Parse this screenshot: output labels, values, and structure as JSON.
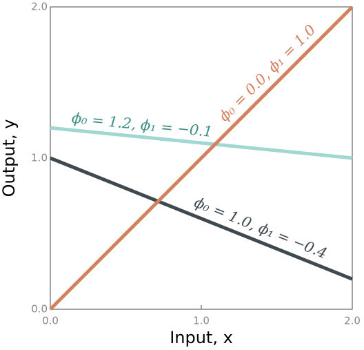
{
  "chart_data": {
    "type": "line",
    "x_label": "Input, x",
    "y_label": "Output, y",
    "x": [
      0,
      2
    ],
    "series": [
      {
        "name": "ϕ₀ = 1.2, ϕ₁ = −0.1",
        "color": "#9fd8d0",
        "values": [
          1.2,
          1.0
        ]
      },
      {
        "name": "ϕ₀ = 1.0, ϕ₁ = −0.4",
        "color": "#3e4a50",
        "values": [
          1.0,
          0.2
        ]
      },
      {
        "name": "ϕ₀ = 0.0, ϕ₁ = 1.0",
        "color": "#d3805f",
        "values": [
          0.0,
          2.0
        ]
      }
    ],
    "xlim": [
      0,
      2
    ],
    "ylim": [
      0,
      2
    ],
    "xticks": [
      {
        "value": 0,
        "label": "0.0"
      },
      {
        "value": 1,
        "label": "1.0"
      },
      {
        "value": 2,
        "label": "2.0"
      }
    ],
    "yticks": [
      {
        "value": 0,
        "label": "0.0"
      },
      {
        "value": 1,
        "label": "1.0"
      },
      {
        "value": 2,
        "label": "2.0"
      }
    ]
  }
}
